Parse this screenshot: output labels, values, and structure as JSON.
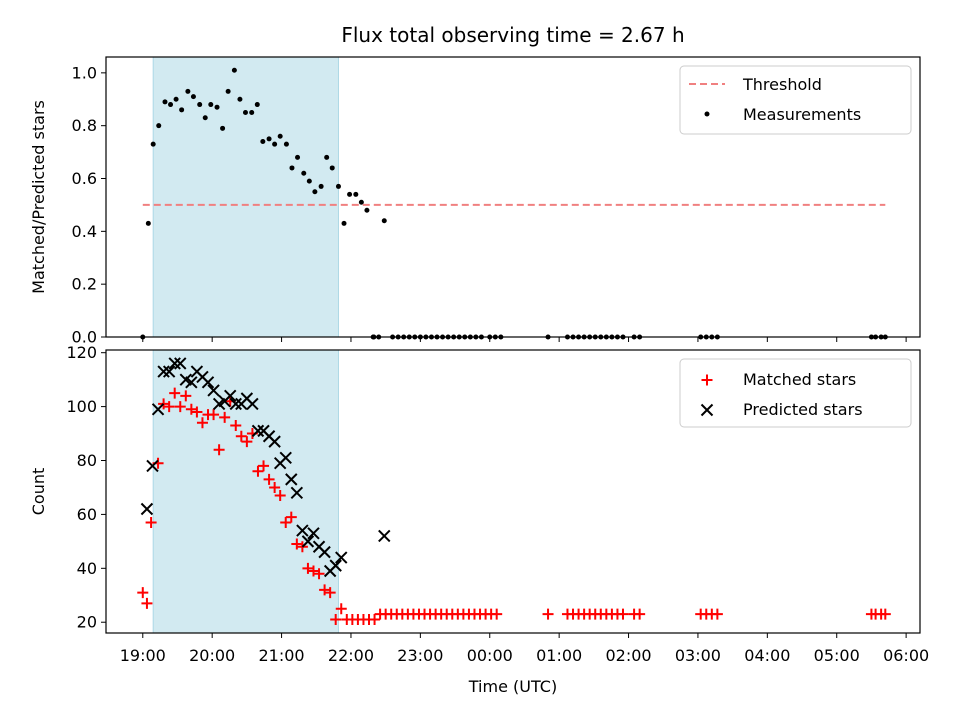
{
  "title": "Flux total observing time = 2.67 h",
  "xlabel": "Time (UTC)",
  "x_ticks": [
    {
      "t": 0,
      "label": "19:00"
    },
    {
      "t": 1,
      "label": "20:00"
    },
    {
      "t": 2,
      "label": "21:00"
    },
    {
      "t": 3,
      "label": "22:00"
    },
    {
      "t": 4,
      "label": "23:00"
    },
    {
      "t": 5,
      "label": "00:00"
    },
    {
      "t": 6,
      "label": "01:00"
    },
    {
      "t": 7,
      "label": "02:00"
    },
    {
      "t": 8,
      "label": "03:00"
    },
    {
      "t": 9,
      "label": "04:00"
    },
    {
      "t": 10,
      "label": "05:00"
    },
    {
      "t": 11,
      "label": "06:00"
    }
  ],
  "chart_data": [
    {
      "type": "scatter",
      "ylabel": "Matched/Predicted stars",
      "xlim": [
        -0.53,
        11.2
      ],
      "ylim": [
        0,
        1.06
      ],
      "y_ticks": [
        "0.0",
        "0.2",
        "0.4",
        "0.6",
        "0.8",
        "1.0"
      ],
      "legend_position": "top-right",
      "shaded_interval": {
        "x": [
          0.15,
          2.82
        ],
        "color": "#add8e6"
      },
      "threshold": {
        "name": "Threshold",
        "y": 0.5,
        "x": [
          0,
          10.7
        ],
        "color": "#f08080"
      },
      "series": [
        {
          "name": "Measurements",
          "color": "#000000",
          "points": [
            [
              0.0,
              0.0
            ],
            [
              0.08,
              0.43
            ],
            [
              0.15,
              0.73
            ],
            [
              0.23,
              0.8
            ],
            [
              0.32,
              0.89
            ],
            [
              0.4,
              0.88
            ],
            [
              0.48,
              0.9
            ],
            [
              0.56,
              0.86
            ],
            [
              0.65,
              0.93
            ],
            [
              0.73,
              0.91
            ],
            [
              0.82,
              0.88
            ],
            [
              0.9,
              0.83
            ],
            [
              0.98,
              0.88
            ],
            [
              1.07,
              0.87
            ],
            [
              1.15,
              0.79
            ],
            [
              1.23,
              0.93
            ],
            [
              1.32,
              1.01
            ],
            [
              1.4,
              0.9
            ],
            [
              1.48,
              0.85
            ],
            [
              1.57,
              0.85
            ],
            [
              1.65,
              0.88
            ],
            [
              1.73,
              0.74
            ],
            [
              1.82,
              0.75
            ],
            [
              1.9,
              0.73
            ],
            [
              1.98,
              0.76
            ],
            [
              2.07,
              0.73
            ],
            [
              2.15,
              0.64
            ],
            [
              2.23,
              0.68
            ],
            [
              2.32,
              0.62
            ],
            [
              2.4,
              0.59
            ],
            [
              2.48,
              0.55
            ],
            [
              2.57,
              0.57
            ],
            [
              2.65,
              0.68
            ],
            [
              2.73,
              0.64
            ],
            [
              2.82,
              0.57
            ],
            [
              2.9,
              0.43
            ],
            [
              2.98,
              0.54
            ],
            [
              3.07,
              0.54
            ],
            [
              3.15,
              0.51
            ],
            [
              3.23,
              0.48
            ],
            [
              3.32,
              0.0
            ],
            [
              3.48,
              0.44
            ],
            [
              3.33,
              0.0
            ],
            [
              3.4,
              0.0
            ],
            [
              3.6,
              0.0
            ],
            [
              3.68,
              0.0
            ],
            [
              3.76,
              0.0
            ],
            [
              3.84,
              0.0
            ],
            [
              3.92,
              0.0
            ],
            [
              4.0,
              0.0
            ],
            [
              4.08,
              0.0
            ],
            [
              4.16,
              0.0
            ],
            [
              4.24,
              0.0
            ],
            [
              4.32,
              0.0
            ],
            [
              4.4,
              0.0
            ],
            [
              4.48,
              0.0
            ],
            [
              4.56,
              0.0
            ],
            [
              4.64,
              0.0
            ],
            [
              4.72,
              0.0
            ],
            [
              4.8,
              0.0
            ],
            [
              4.88,
              0.0
            ],
            [
              5.0,
              0.0
            ],
            [
              5.08,
              0.0
            ],
            [
              5.16,
              0.0
            ],
            [
              5.84,
              0.0
            ],
            [
              6.12,
              0.0
            ],
            [
              6.2,
              0.0
            ],
            [
              6.28,
              0.0
            ],
            [
              6.36,
              0.0
            ],
            [
              6.44,
              0.0
            ],
            [
              6.52,
              0.0
            ],
            [
              6.6,
              0.0
            ],
            [
              6.68,
              0.0
            ],
            [
              6.76,
              0.0
            ],
            [
              6.84,
              0.0
            ],
            [
              6.92,
              0.0
            ],
            [
              7.08,
              0.0
            ],
            [
              7.16,
              0.0
            ],
            [
              8.04,
              0.0
            ],
            [
              8.12,
              0.0
            ],
            [
              8.2,
              0.0
            ],
            [
              8.28,
              0.0
            ],
            [
              10.5,
              0.0
            ],
            [
              10.56,
              0.0
            ],
            [
              10.64,
              0.0
            ],
            [
              10.7,
              0.0
            ]
          ]
        }
      ]
    },
    {
      "type": "scatter",
      "ylabel": "Count",
      "xlim": [
        -0.53,
        11.2
      ],
      "ylim": [
        16,
        121
      ],
      "y_ticks": [
        "20",
        "40",
        "60",
        "80",
        "100",
        "120"
      ],
      "legend_position": "top-right",
      "shaded_interval": {
        "x": [
          0.15,
          2.82
        ],
        "color": "#add8e6"
      },
      "series": [
        {
          "name": "Matched stars",
          "color": "#ff0000",
          "marker": "plus",
          "points": [
            [
              0.0,
              31
            ],
            [
              0.06,
              27
            ],
            [
              0.12,
              57
            ],
            [
              0.22,
              79
            ],
            [
              0.3,
              101
            ],
            [
              0.38,
              100
            ],
            [
              0.46,
              105
            ],
            [
              0.54,
              100
            ],
            [
              0.62,
              104
            ],
            [
              0.7,
              99
            ],
            [
              0.78,
              98
            ],
            [
              0.86,
              94
            ],
            [
              0.94,
              97
            ],
            [
              1.02,
              97
            ],
            [
              1.1,
              84
            ],
            [
              1.18,
              96
            ],
            [
              1.26,
              102
            ],
            [
              1.34,
              93
            ],
            [
              1.42,
              89
            ],
            [
              1.5,
              87
            ],
            [
              1.58,
              90
            ],
            [
              1.66,
              76
            ],
            [
              1.74,
              78
            ],
            [
              1.82,
              73
            ],
            [
              1.9,
              70
            ],
            [
              1.98,
              67
            ],
            [
              2.06,
              57
            ],
            [
              2.14,
              59
            ],
            [
              2.22,
              49
            ],
            [
              2.3,
              48
            ],
            [
              2.38,
              40
            ],
            [
              2.46,
              39
            ],
            [
              2.54,
              38
            ],
            [
              2.62,
              32
            ],
            [
              2.7,
              31
            ],
            [
              2.78,
              21
            ],
            [
              2.86,
              25
            ],
            [
              2.94,
              21
            ],
            [
              3.02,
              21
            ],
            [
              3.1,
              21
            ],
            [
              3.18,
              21
            ],
            [
              3.26,
              21
            ],
            [
              3.34,
              21
            ],
            [
              3.42,
              23
            ],
            [
              3.5,
              23
            ],
            [
              3.58,
              23
            ],
            [
              3.66,
              23
            ],
            [
              3.74,
              23
            ],
            [
              3.82,
              23
            ],
            [
              3.9,
              23
            ],
            [
              3.98,
              23
            ],
            [
              4.06,
              23
            ],
            [
              4.14,
              23
            ],
            [
              4.22,
              23
            ],
            [
              4.3,
              23
            ],
            [
              4.38,
              23
            ],
            [
              4.46,
              23
            ],
            [
              4.54,
              23
            ],
            [
              4.62,
              23
            ],
            [
              4.7,
              23
            ],
            [
              4.78,
              23
            ],
            [
              4.86,
              23
            ],
            [
              4.94,
              23
            ],
            [
              5.02,
              23
            ],
            [
              5.1,
              23
            ],
            [
              5.84,
              23
            ],
            [
              6.12,
              23
            ],
            [
              6.2,
              23
            ],
            [
              6.28,
              23
            ],
            [
              6.36,
              23
            ],
            [
              6.44,
              23
            ],
            [
              6.52,
              23
            ],
            [
              6.6,
              23
            ],
            [
              6.68,
              23
            ],
            [
              6.76,
              23
            ],
            [
              6.84,
              23
            ],
            [
              6.92,
              23
            ],
            [
              7.08,
              23
            ],
            [
              7.16,
              23
            ],
            [
              8.04,
              23
            ],
            [
              8.12,
              23
            ],
            [
              8.2,
              23
            ],
            [
              8.28,
              23
            ],
            [
              10.5,
              23
            ],
            [
              10.56,
              23
            ],
            [
              10.64,
              23
            ],
            [
              10.7,
              23
            ]
          ]
        },
        {
          "name": "Predicted stars",
          "color": "#000000",
          "marker": "x",
          "points": [
            [
              0.06,
              62
            ],
            [
              0.14,
              78
            ],
            [
              0.22,
              99
            ],
            [
              0.3,
              113
            ],
            [
              0.38,
              113
            ],
            [
              0.46,
              116
            ],
            [
              0.54,
              116
            ],
            [
              0.62,
              110
            ],
            [
              0.7,
              109
            ],
            [
              0.78,
              113
            ],
            [
              0.86,
              111
            ],
            [
              0.94,
              109
            ],
            [
              1.02,
              106
            ],
            [
              1.1,
              101
            ],
            [
              1.18,
              102
            ],
            [
              1.26,
              104
            ],
            [
              1.34,
              101
            ],
            [
              1.42,
              101
            ],
            [
              1.5,
              103
            ],
            [
              1.58,
              101
            ],
            [
              1.66,
              91
            ],
            [
              1.74,
              91
            ],
            [
              1.82,
              89
            ],
            [
              1.9,
              87
            ],
            [
              1.98,
              79
            ],
            [
              2.06,
              81
            ],
            [
              2.14,
              73
            ],
            [
              2.22,
              68
            ],
            [
              2.3,
              54
            ],
            [
              2.38,
              50
            ],
            [
              2.46,
              53
            ],
            [
              2.54,
              48
            ],
            [
              2.62,
              46
            ],
            [
              2.7,
              39
            ],
            [
              2.78,
              41
            ],
            [
              2.86,
              44
            ],
            [
              3.48,
              52
            ]
          ]
        }
      ]
    }
  ]
}
